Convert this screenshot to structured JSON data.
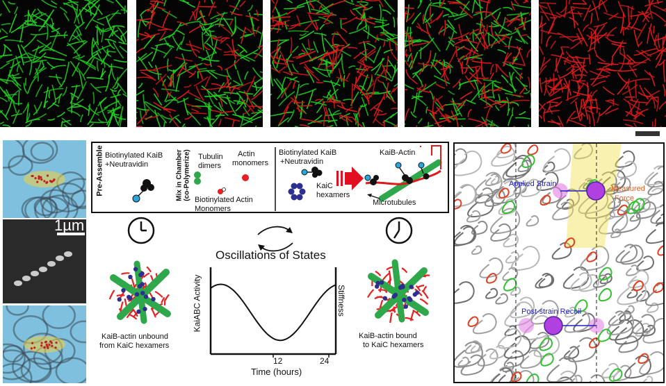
{
  "scale_bar_label": "1µm",
  "schematic": {
    "pre_assemble_label": "Pre-Assemble",
    "kaib_neutravidin_left": [
      "Biotinylated KaiB",
      "+Neutravidin"
    ],
    "mix_label": [
      "Mix in Chamber",
      "(co-Polymerize)"
    ],
    "tubulin_label": [
      "Tubulin",
      "dimers"
    ],
    "actin_monomers_label": [
      "Actin",
      "monomers"
    ],
    "biotin_actin_label": [
      "Biotinylated Actin",
      "Monomers"
    ],
    "kaib_neutravidin_right": [
      "Biotinylated KaiB",
      "+Neutravidin"
    ],
    "kaic_label": [
      "KaiC",
      "hexamers"
    ],
    "kaib_actin_label": "KaiB-Actin",
    "microtubules_label": "Microtubules"
  },
  "cycle": {
    "title": "Oscillations of States",
    "unbound_caption": [
      "KaiB-actin unbound",
      "from KaiC hexamers"
    ],
    "bound_caption": [
      "KaiB-actin bound",
      "to KaiC hexamers"
    ]
  },
  "graph": {
    "ylabel_left": "KaiABC Activity",
    "ylabel_right": "Stiffness",
    "xlabel": "Time (hours)",
    "tick_12": "12",
    "tick_24": "24"
  },
  "simulation": {
    "applied_strain": "Applied Strain",
    "measured_force": [
      "Measured",
      "Force"
    ],
    "post_strain_recoil": "Post-strain Recoil"
  },
  "colors": {
    "green_channel": "#1fd21f",
    "red_channel": "#e01a1a",
    "tubulin": "#2ea84a",
    "actin": "#e82020",
    "kaib": "#2aa6dc",
    "kaic": "#2d2f8f",
    "arrow": "#e01020",
    "strain_text": "#2020c0",
    "force_text": "#e06020"
  }
}
